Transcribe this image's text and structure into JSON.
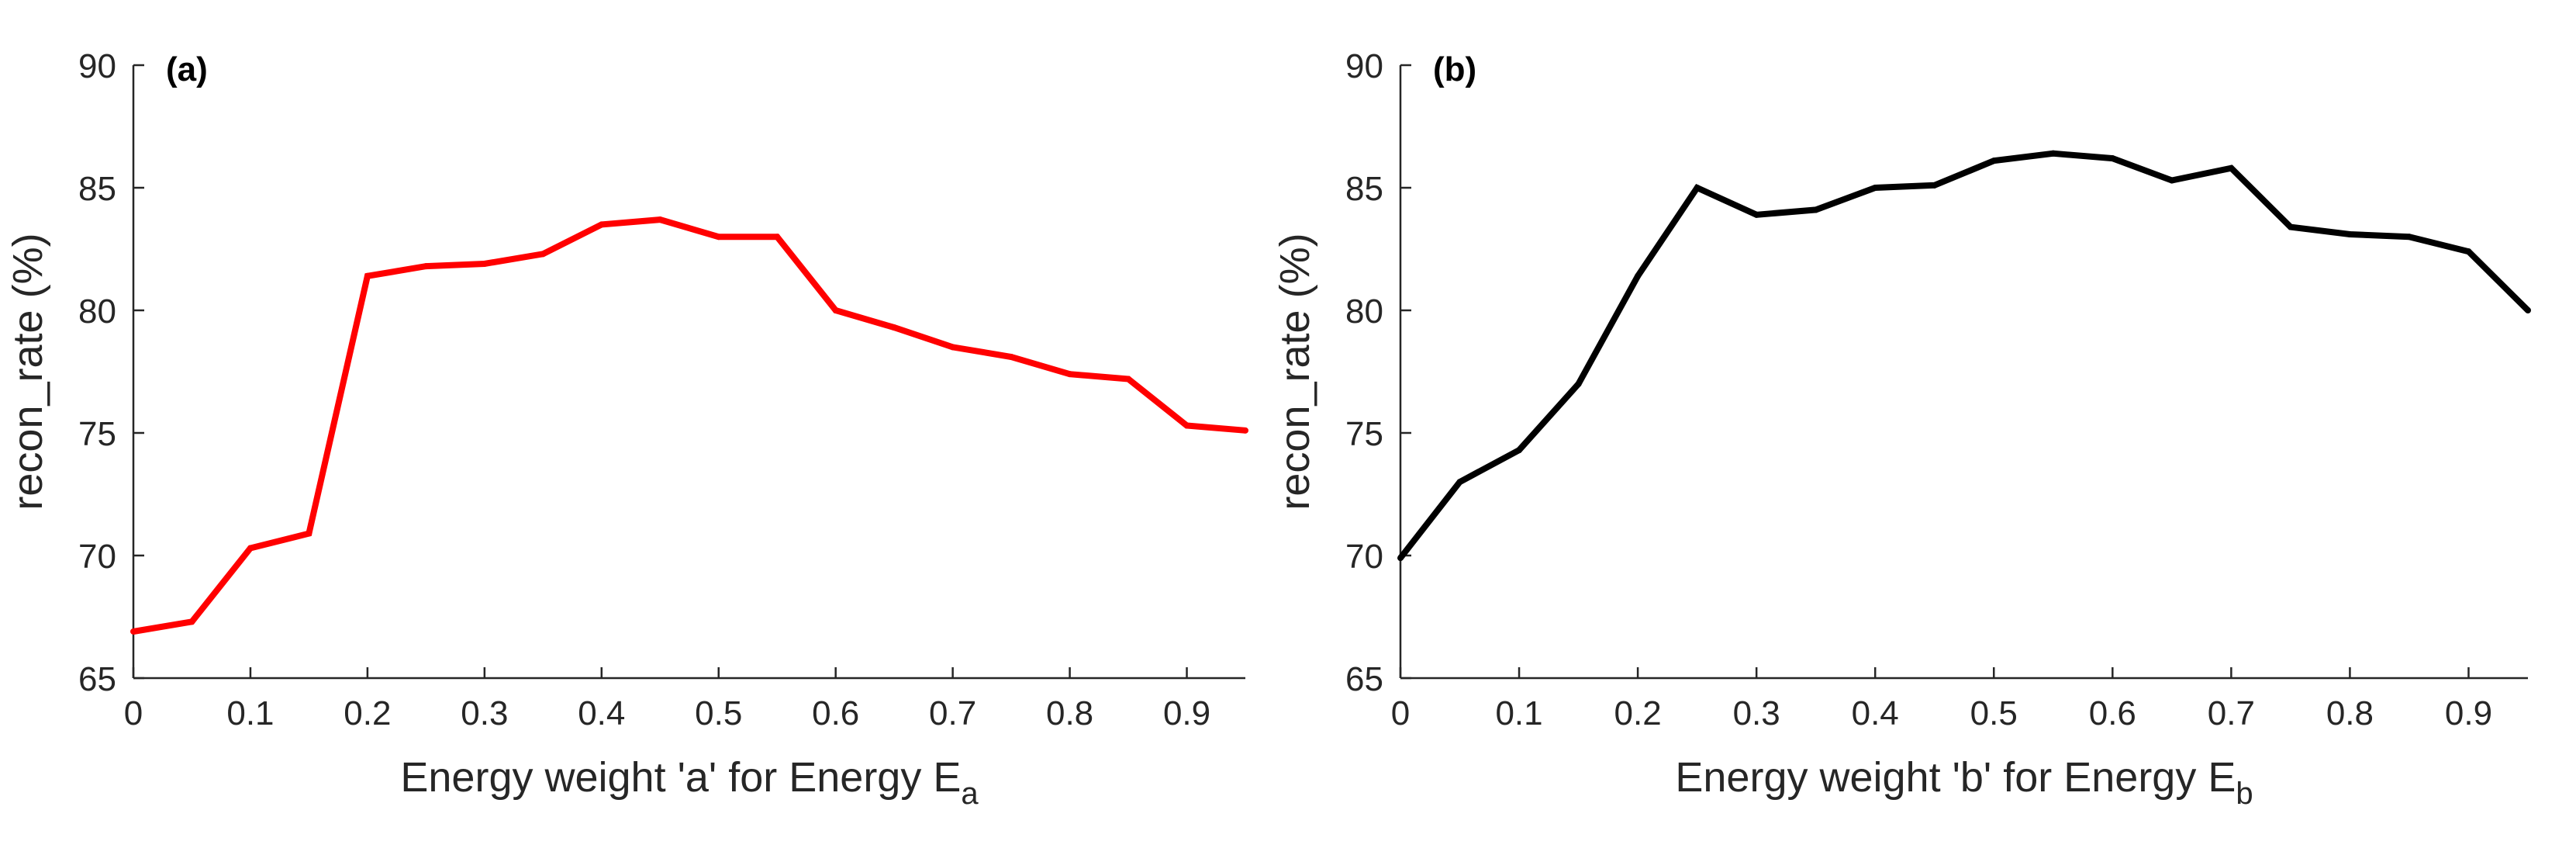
{
  "chart_data": [
    {
      "type": "line",
      "panel_label": "(a)",
      "xlabel_main": "Energy weight 'a' for Energy E",
      "xlabel_sub": "a",
      "ylabel": "recon_rate (%)",
      "xlim": [
        0,
        0.95
      ],
      "ylim": [
        65,
        90
      ],
      "xticks": [
        0,
        0.1,
        0.2,
        0.3,
        0.4,
        0.5,
        0.6,
        0.7,
        0.8,
        0.9
      ],
      "xtick_labels": [
        "0",
        "0.1",
        "0.2",
        "0.3",
        "0.4",
        "0.5",
        "0.6",
        "0.7",
        "0.8",
        "0.9"
      ],
      "yticks": [
        65,
        70,
        75,
        80,
        85,
        90
      ],
      "ytick_labels": [
        "65",
        "70",
        "75",
        "80",
        "85",
        "90"
      ],
      "grid": false,
      "series": [
        {
          "name": "recon_rate",
          "color": "#ff0000",
          "x": [
            0,
            0.05,
            0.1,
            0.15,
            0.2,
            0.25,
            0.3,
            0.35,
            0.4,
            0.45,
            0.5,
            0.55,
            0.6,
            0.65,
            0.7,
            0.75,
            0.8,
            0.85,
            0.9,
            0.95
          ],
          "y": [
            66.9,
            67.3,
            70.3,
            70.9,
            81.4,
            81.8,
            81.9,
            82.3,
            83.5,
            83.7,
            83.0,
            83.0,
            80.0,
            79.3,
            78.5,
            78.1,
            77.4,
            77.2,
            75.3,
            75.1
          ]
        }
      ]
    },
    {
      "type": "line",
      "panel_label": "(b)",
      "xlabel_main": "Energy weight 'b' for Energy E",
      "xlabel_sub": "b",
      "ylabel": "recon_rate (%)",
      "xlim": [
        0,
        0.95
      ],
      "ylim": [
        65,
        90
      ],
      "xticks": [
        0,
        0.1,
        0.2,
        0.3,
        0.4,
        0.5,
        0.6,
        0.7,
        0.8,
        0.9
      ],
      "xtick_labels": [
        "0",
        "0.1",
        "0.2",
        "0.3",
        "0.4",
        "0.5",
        "0.6",
        "0.7",
        "0.8",
        "0.9"
      ],
      "yticks": [
        65,
        70,
        75,
        80,
        85,
        90
      ],
      "ytick_labels": [
        "65",
        "70",
        "75",
        "80",
        "85",
        "90"
      ],
      "grid": false,
      "series": [
        {
          "name": "recon_rate",
          "color": "#000000",
          "x": [
            0,
            0.05,
            0.1,
            0.15,
            0.2,
            0.25,
            0.3,
            0.35,
            0.4,
            0.45,
            0.5,
            0.55,
            0.6,
            0.65,
            0.7,
            0.75,
            0.8,
            0.85,
            0.9,
            0.95
          ],
          "y": [
            69.9,
            73.0,
            74.3,
            77.0,
            81.4,
            85.0,
            83.9,
            84.1,
            85.0,
            85.1,
            86.1,
            86.4,
            86.2,
            85.3,
            85.8,
            83.4,
            83.1,
            83.0,
            82.4,
            80.0
          ]
        }
      ]
    }
  ]
}
